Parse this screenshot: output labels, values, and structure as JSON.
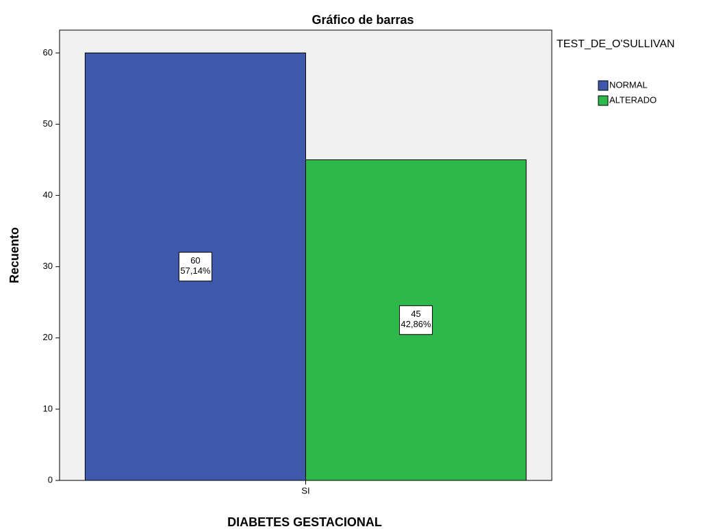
{
  "chart_data": {
    "type": "bar",
    "title": "Gráfico de barras",
    "x_label": "DIABETES GESTACIONAL",
    "y_label": "Recuento",
    "legend_title": "TEST_DE_O'SULLIVAN",
    "legend_position": "right",
    "categories": [
      "SI"
    ],
    "series": [
      {
        "name": "NORMAL",
        "color": "#3e58ac",
        "values": [
          60
        ],
        "value_labels": [
          "60"
        ],
        "percent_labels": [
          "57,14%"
        ]
      },
      {
        "name": "ALTERADO",
        "color": "#2eb84b",
        "values": [
          45
        ],
        "value_labels": [
          "45"
        ],
        "percent_labels": [
          "42,86%"
        ]
      }
    ],
    "ylim": [
      0,
      63.2
    ],
    "yticks": [
      0,
      10,
      20,
      30,
      40,
      50,
      60
    ],
    "grid": false
  }
}
